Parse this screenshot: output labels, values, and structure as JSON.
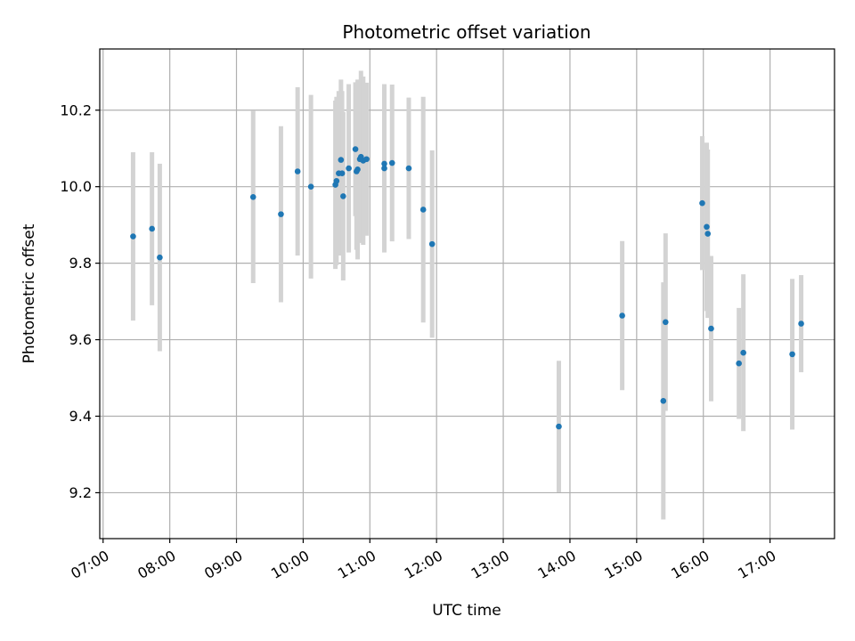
{
  "chart_data": {
    "type": "scatter",
    "title": "Photometric offset variation",
    "xlabel": "UTC time",
    "ylabel": "Photometric offset",
    "x_axis": {
      "kind": "time",
      "range": [
        "06:57",
        "17:58"
      ],
      "ticks": [
        "07:00",
        "08:00",
        "09:00",
        "10:00",
        "11:00",
        "12:00",
        "13:00",
        "14:00",
        "15:00",
        "16:00",
        "17:00"
      ]
    },
    "y_axis": {
      "range": [
        9.08,
        10.36
      ],
      "ticks": [
        "9.2",
        "9.4",
        "9.6",
        "9.8",
        "10.0",
        "10.2"
      ]
    },
    "grid": true,
    "colors": {
      "point": "#1f77b4",
      "errorbar": "#d3d3d3",
      "grid": "#b0b0b0"
    },
    "points": [
      {
        "x": "07:27",
        "y": 9.87,
        "err": 0.22
      },
      {
        "x": "07:44",
        "y": 9.89,
        "err": 0.2
      },
      {
        "x": "07:51",
        "y": 9.815,
        "err": 0.245
      },
      {
        "x": "09:15",
        "y": 9.973,
        "err": 0.225
      },
      {
        "x": "09:40",
        "y": 9.928,
        "err": 0.23
      },
      {
        "x": "09:55",
        "y": 10.04,
        "err": 0.22
      },
      {
        "x": "10:07",
        "y": 10.0,
        "err": 0.24
      },
      {
        "x": "10:29",
        "y": 10.005,
        "err": 0.22
      },
      {
        "x": "10:30",
        "y": 10.015,
        "err": 0.22
      },
      {
        "x": "10:32",
        "y": 10.035,
        "err": 0.215
      },
      {
        "x": "10:34",
        "y": 10.07,
        "err": 0.21
      },
      {
        "x": "10:35",
        "y": 10.035,
        "err": 0.215
      },
      {
        "x": "10:36",
        "y": 9.975,
        "err": 0.22
      },
      {
        "x": "10:41",
        "y": 10.048,
        "err": 0.22
      },
      {
        "x": "10:47",
        "y": 10.098,
        "err": 0.175
      },
      {
        "x": "10:48",
        "y": 10.04,
        "err": 0.205
      },
      {
        "x": "10:49",
        "y": 10.045,
        "err": 0.235
      },
      {
        "x": "10:51",
        "y": 10.072,
        "err": 0.205
      },
      {
        "x": "10:52",
        "y": 10.078,
        "err": 0.225
      },
      {
        "x": "10:54",
        "y": 10.068,
        "err": 0.22
      },
      {
        "x": "10:57",
        "y": 10.072,
        "err": 0.2
      },
      {
        "x": "11:13",
        "y": 10.06,
        "err": 0.2
      },
      {
        "x": "11:13",
        "y": 10.048,
        "err": 0.22
      },
      {
        "x": "11:20",
        "y": 10.062,
        "err": 0.205
      },
      {
        "x": "11:35",
        "y": 10.048,
        "err": 0.185
      },
      {
        "x": "11:48",
        "y": 9.94,
        "err": 0.295
      },
      {
        "x": "11:56",
        "y": 9.85,
        "err": 0.245
      },
      {
        "x": "13:50",
        "y": 9.373,
        "err": 0.172
      },
      {
        "x": "14:47",
        "y": 9.663,
        "err": 0.195
      },
      {
        "x": "15:24",
        "y": 9.44,
        "err": 0.31
      },
      {
        "x": "15:26",
        "y": 9.646,
        "err": 0.232
      },
      {
        "x": "15:59",
        "y": 9.957,
        "err": 0.175
      },
      {
        "x": "16:03",
        "y": 9.895,
        "err": 0.22
      },
      {
        "x": "16:04",
        "y": 9.877,
        "err": 0.22
      },
      {
        "x": "16:07",
        "y": 9.629,
        "err": 0.19
      },
      {
        "x": "16:32",
        "y": 9.538,
        "err": 0.145
      },
      {
        "x": "16:36",
        "y": 9.566,
        "err": 0.205
      },
      {
        "x": "17:20",
        "y": 9.562,
        "err": 0.197
      },
      {
        "x": "17:28",
        "y": 9.642,
        "err": 0.127
      }
    ]
  }
}
